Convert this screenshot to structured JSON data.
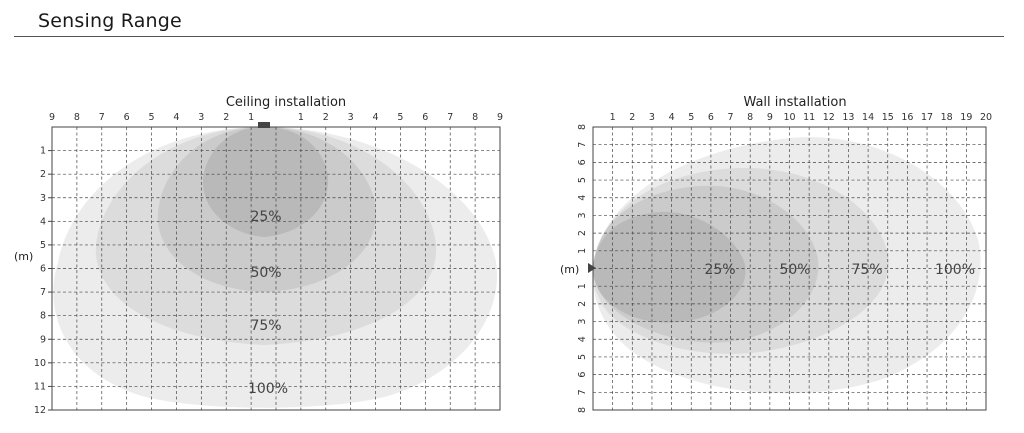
{
  "page": {
    "title": "Sensing Range"
  },
  "ceiling": {
    "title": "Ceiling installation",
    "unit": "(m)",
    "x_ticks": [
      "9",
      "8",
      "7",
      "6",
      "5",
      "4",
      "3",
      "2",
      "1",
      "",
      "1",
      "2",
      "3",
      "4",
      "5",
      "6",
      "7",
      "8",
      "9"
    ],
    "y_ticks": [
      "1",
      "2",
      "3",
      "4",
      "5",
      "6",
      "7",
      "8",
      "9",
      "10",
      "11",
      "12"
    ],
    "zones": [
      "25%",
      "50%",
      "75%",
      "100%"
    ],
    "zone_colors": [
      "#b9b9b9",
      "#cbcbcb",
      "#dcdcdc",
      "#ececec"
    ]
  },
  "wall": {
    "title": "Wall installation",
    "unit": "(m)",
    "x_ticks": [
      "1",
      "2",
      "3",
      "4",
      "5",
      "6",
      "7",
      "8",
      "9",
      "10",
      "11",
      "12",
      "13",
      "14",
      "15",
      "16",
      "17",
      "18",
      "19",
      "20"
    ],
    "y_ticks_top": [
      "8",
      "7",
      "6",
      "5",
      "4",
      "3",
      "2",
      "1"
    ],
    "y_ticks_bottom": [
      "1",
      "2",
      "3",
      "4",
      "5",
      "6",
      "7",
      "8"
    ],
    "zones": [
      "25%",
      "50%",
      "75%",
      "100%"
    ],
    "zone_colors": [
      "#b9b9b9",
      "#cbcbcb",
      "#dcdcdc",
      "#ececec"
    ]
  }
}
